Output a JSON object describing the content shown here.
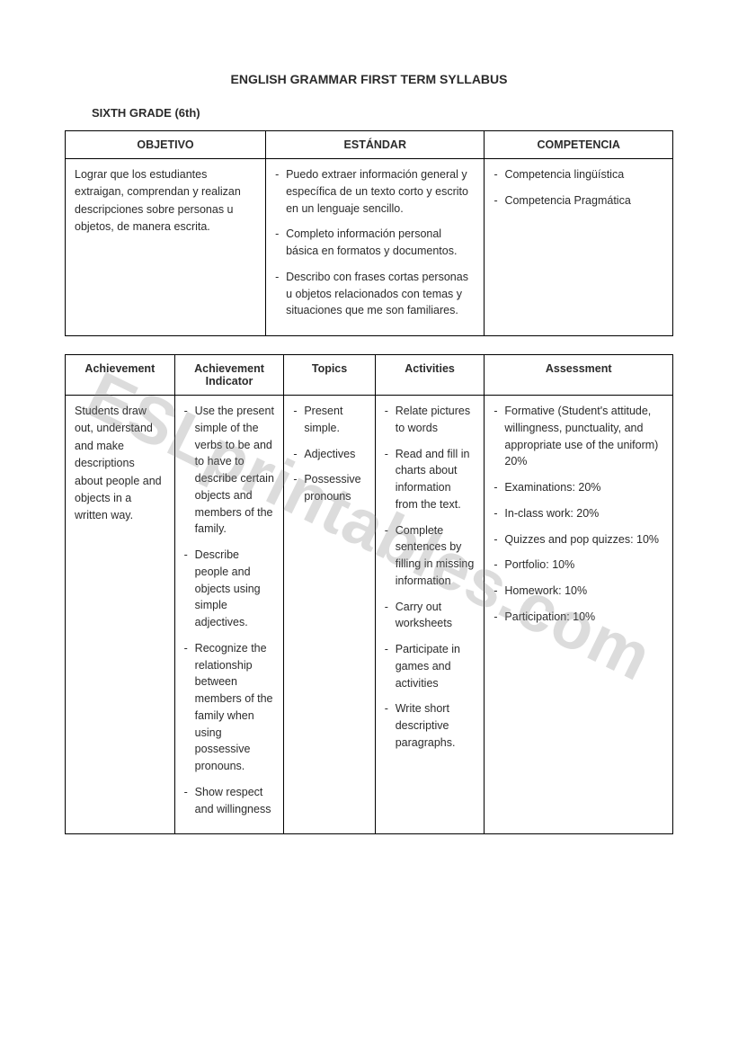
{
  "title": "ENGLISH GRAMMAR FIRST TERM SYLLABUS",
  "subtitle": "SIXTH GRADE (6th)",
  "watermark": "ESLprintables.com",
  "table1": {
    "headers": {
      "c1": "OBJETIVO",
      "c2": "ESTÁNDAR",
      "c3": "COMPETENCIA"
    },
    "objetivo": "Lograr que los estudiantes extraigan, comprendan y realizan descripciones sobre personas u objetos, de manera escrita.",
    "estandar": [
      "Puedo extraer información general y específica de un texto corto y escrito en un lenguaje sencillo.",
      "Completo información personal básica en formatos y documentos.",
      "Describo con frases cortas personas u objetos relacionados con temas y situaciones que me son familiares."
    ],
    "competencia": [
      "Competencia lingüística",
      "Competencia Pragmática"
    ]
  },
  "table2": {
    "headers": {
      "c1": "Achievement",
      "c2": "Achievement Indicator",
      "c3": "Topics",
      "c4": "Activities",
      "c5": "Assessment"
    },
    "achievement": "Students draw out, understand and make descriptions about people and objects in a written way.",
    "indicator": [
      "Use the present simple of the verbs to be and to have to describe certain objects and members of the family.",
      "Describe people and objects using simple adjectives.",
      "Recognize the relationship between members of the family when using possessive pronouns.",
      "Show respect and willingness"
    ],
    "topics": [
      "Present simple.",
      "Adjectives",
      "Possessive pronouns"
    ],
    "activities": [
      "Relate pictures to words",
      "Read and fill in charts about information from the text.",
      "Complete sentences by filling in missing information",
      "Carry out worksheets",
      "Participate in games and activities",
      "Write short descriptive paragraphs."
    ],
    "assessment": [
      "Formative (Student's attitude, willingness, punctuality,  and appropriate use of the uniform) 20%",
      "Examinations: 20%",
      "In-class work: 20%",
      "Quizzes and pop quizzes: 10%",
      "Portfolio: 10%",
      "Homework: 10%",
      "Participation: 10%"
    ]
  }
}
